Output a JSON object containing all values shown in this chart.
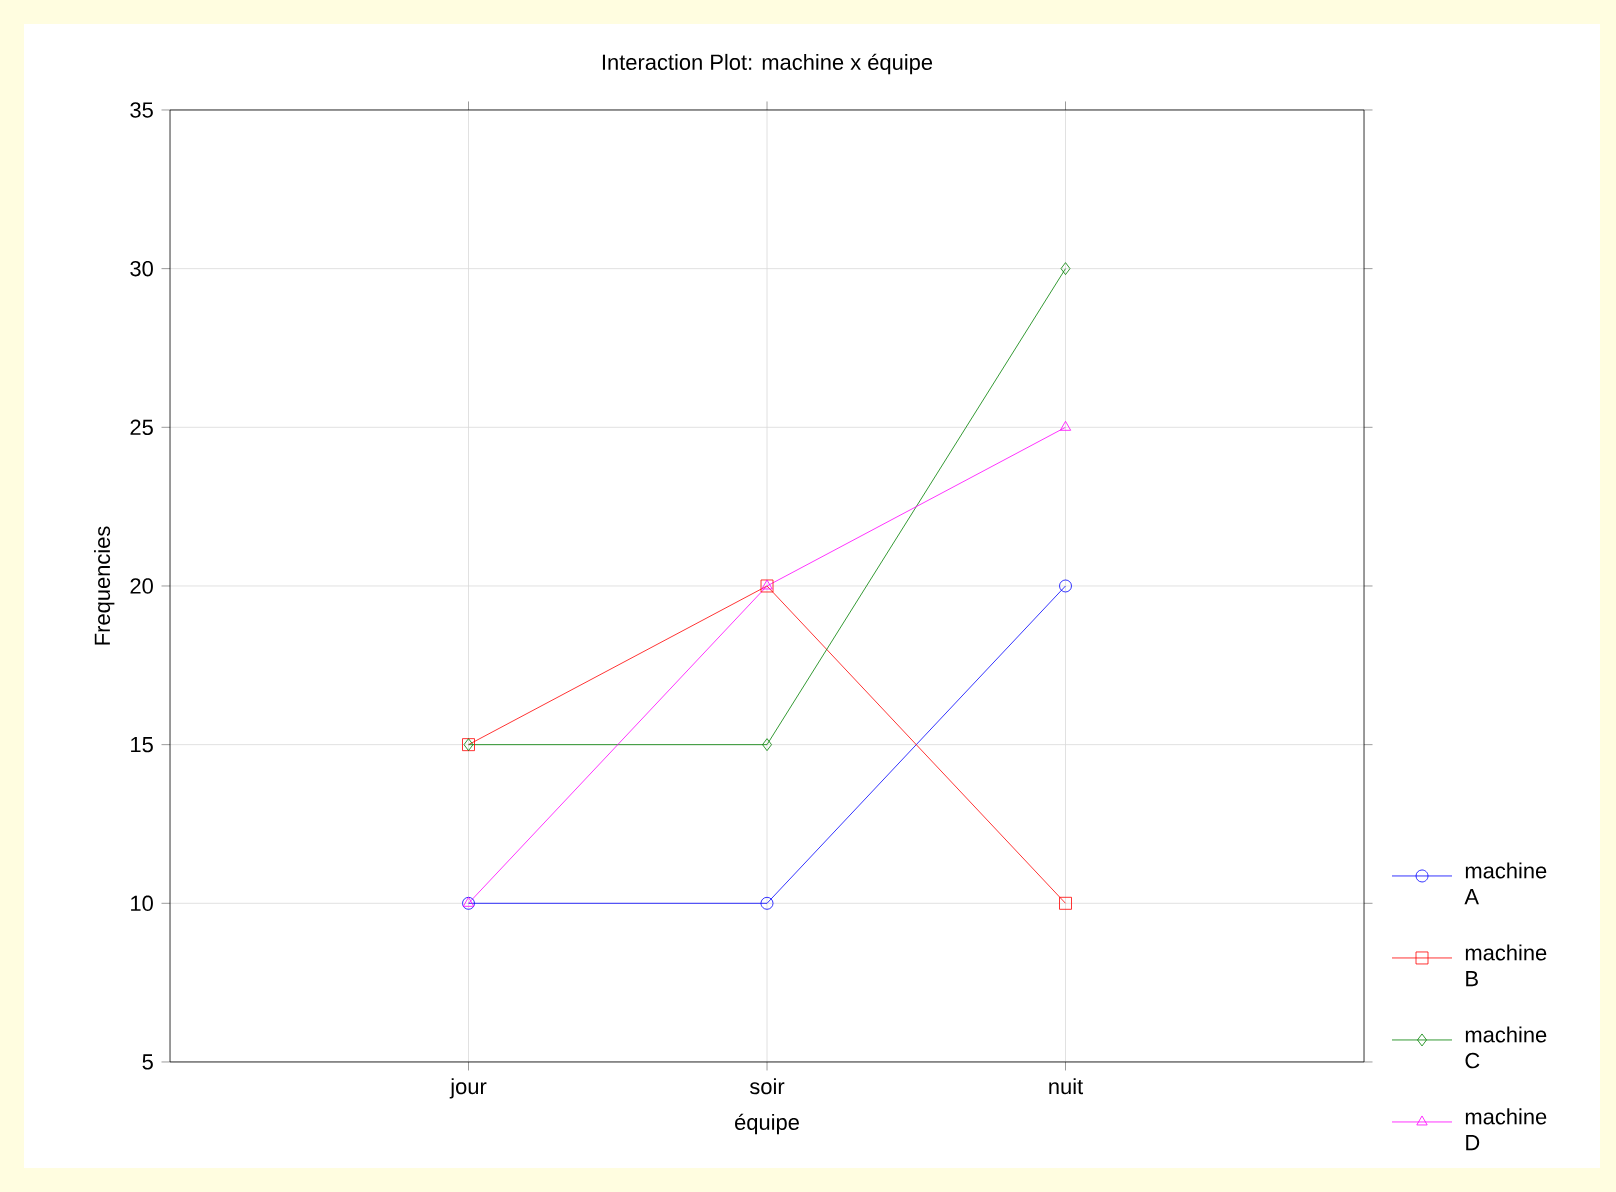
{
  "chart_data": {
    "type": "line",
    "title": "Interaction Plot: machine x équipe",
    "xlabel": "équipe",
    "ylabel": "Frequencies",
    "categories": [
      "jour",
      "soir",
      "nuit"
    ],
    "series": [
      {
        "name": "machine A",
        "color": "#0000ff",
        "marker": "circle",
        "values": [
          10,
          10,
          20
        ]
      },
      {
        "name": "machine B",
        "color": "#ff0000",
        "marker": "square",
        "values": [
          15,
          20,
          10
        ]
      },
      {
        "name": "machine C",
        "color": "#008000",
        "marker": "diamond",
        "values": [
          15,
          15,
          30
        ]
      },
      {
        "name": "machine D",
        "color": "#ff00ff",
        "marker": "triangle",
        "values": [
          10,
          20,
          25
        ]
      }
    ],
    "ylim": [
      5,
      35
    ],
    "yticks": [
      5,
      10,
      15,
      20,
      25,
      30,
      35
    ],
    "grid": true,
    "legend": "right",
    "line_style": "solid"
  }
}
